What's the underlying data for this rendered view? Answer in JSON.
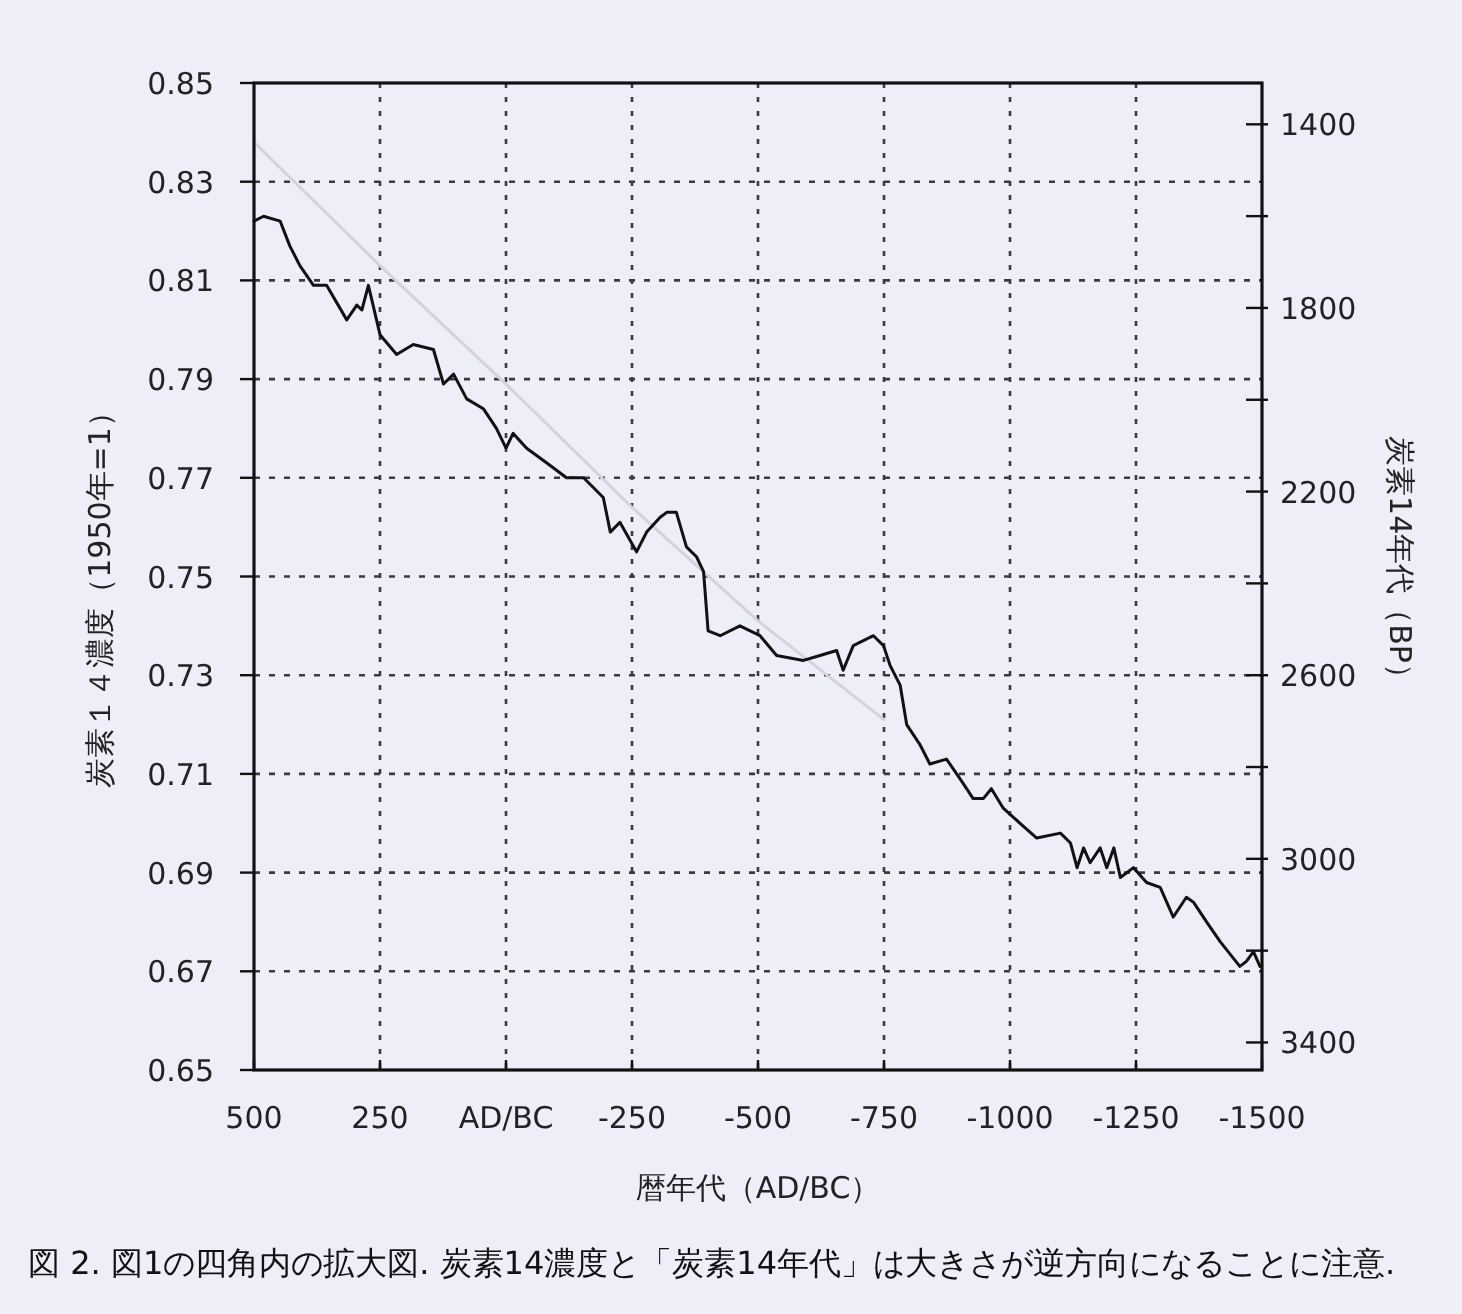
{
  "chart_data": {
    "type": "line",
    "xlabel": "暦年代（AD/BC）",
    "ylabel": "炭素１４濃度（1950年=1）",
    "y2label": "炭素14年代（BP）",
    "annotations": [
      "図 2. 図1の四角内の拡大図. 炭素14濃度と「炭素14年代」は大きさが逆方向になることに注意."
    ],
    "xlim": [
      500,
      -1500
    ],
    "xticks": [
      500,
      250,
      {
        "value": 0,
        "label": "AD/BC"
      },
      -250,
      -500,
      -750,
      -1000,
      -1250,
      -1500
    ],
    "ylim": [
      0.65,
      0.85
    ],
    "yticks": [
      0.65,
      0.67,
      0.69,
      0.71,
      0.73,
      0.75,
      0.77,
      0.79,
      0.81,
      0.83,
      0.85
    ],
    "y2lim": [
      3460,
      1310
    ],
    "y2ticks": [
      1400,
      {
        "value": 1600,
        "label": null
      },
      1800,
      {
        "value": 2000,
        "label": null
      },
      2200,
      {
        "value": 2400,
        "label": null
      },
      2600,
      {
        "value": 2800,
        "label": null
      },
      3000,
      {
        "value": 3200,
        "label": null
      },
      3400
    ],
    "grid": true,
    "line_style": "solid",
    "series": [
      {
        "color": "#d8d0e0",
        "x": [
          500,
          250,
          0,
          -250,
          -500,
          -750
        ],
        "values": [
          0.838,
          0.813,
          0.789,
          0.764,
          0.741,
          0.721
        ]
      },
      {
        "color": "#111111",
        "x": [
          500,
          481,
          448,
          429,
          409,
          382,
          356,
          316,
          296,
          286,
          273,
          250,
          217,
          184,
          144,
          124,
          104,
          78,
          45,
          19,
          0,
          -14,
          -41,
          -81,
          -120,
          -154,
          -193,
          -207,
          -226,
          -259,
          -279,
          -306,
          -319,
          -338,
          -358,
          -378,
          -392,
          -401,
          -425,
          -464,
          -504,
          -537,
          -590,
          -623,
          -656,
          -669,
          -689,
          -729,
          -749,
          -762,
          -782,
          -795,
          -821,
          -841,
          -874,
          -901,
          -927,
          -947,
          -963,
          -987,
          -1020,
          -1053,
          -1100,
          -1120,
          -1133,
          -1146,
          -1159,
          -1179,
          -1192,
          -1206,
          -1219,
          -1245,
          -1271,
          -1298,
          -1324,
          -1350,
          -1364,
          -1390,
          -1417,
          -1456,
          -1469,
          -1483,
          -1496
        ],
        "values": [
          0.822,
          0.823,
          0.822,
          0.817,
          0.813,
          0.809,
          0.809,
          0.802,
          0.805,
          0.804,
          0.809,
          0.799,
          0.795,
          0.797,
          0.796,
          0.789,
          0.791,
          0.786,
          0.784,
          0.78,
          0.776,
          0.779,
          0.776,
          0.773,
          0.77,
          0.77,
          0.766,
          0.759,
          0.761,
          0.755,
          0.759,
          0.762,
          0.763,
          0.763,
          0.756,
          0.754,
          0.751,
          0.739,
          0.738,
          0.74,
          0.738,
          0.734,
          0.733,
          0.734,
          0.735,
          0.731,
          0.736,
          0.738,
          0.736,
          0.732,
          0.728,
          0.72,
          0.716,
          0.712,
          0.713,
          0.709,
          0.705,
          0.705,
          0.707,
          0.703,
          0.7,
          0.697,
          0.698,
          0.696,
          0.691,
          0.695,
          0.692,
          0.695,
          0.691,
          0.695,
          0.689,
          0.691,
          0.688,
          0.687,
          0.681,
          0.685,
          0.684,
          0.68,
          0.676,
          0.671,
          0.672,
          0.674,
          0.671
        ]
      }
    ]
  }
}
